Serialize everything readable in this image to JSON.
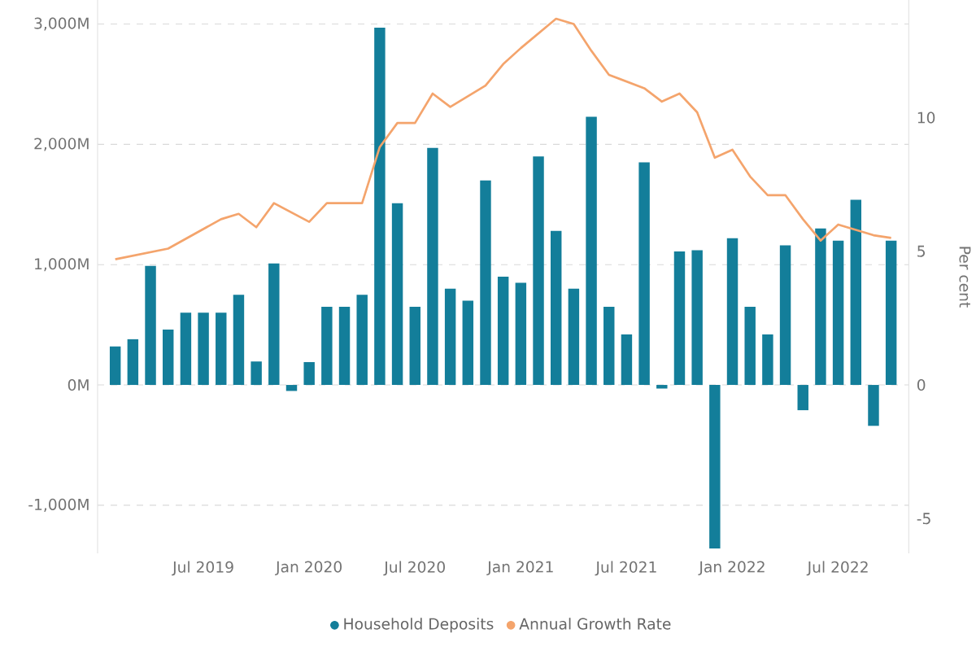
{
  "chart_data": {
    "type": "bar",
    "ylabel": null,
    "y2label": "Per cent",
    "x": [
      "2019-02",
      "2019-03",
      "2019-04",
      "2019-05",
      "2019-06",
      "2019-07",
      "2019-08",
      "2019-09",
      "2019-10",
      "2019-11",
      "2019-12",
      "2020-01",
      "2020-02",
      "2020-03",
      "2020-04",
      "2020-05",
      "2020-06",
      "2020-07",
      "2020-08",
      "2020-09",
      "2020-10",
      "2020-11",
      "2020-12",
      "2021-01",
      "2021-02",
      "2021-03",
      "2021-04",
      "2021-05",
      "2021-06",
      "2021-07",
      "2021-08",
      "2021-09",
      "2021-10",
      "2021-11",
      "2021-12",
      "2022-01",
      "2022-02",
      "2022-03",
      "2022-04",
      "2022-05",
      "2022-06",
      "2022-07",
      "2022-08",
      "2022-09",
      "2022-10"
    ],
    "series": [
      {
        "name": "Household Deposits",
        "color": "#137e9a",
        "values": [
          320,
          380,
          990,
          460,
          600,
          600,
          600,
          750,
          195,
          1010,
          -50,
          190,
          650,
          650,
          750,
          2970,
          1510,
          650,
          1970,
          800,
          700,
          1700,
          900,
          850,
          1900,
          1280,
          800,
          2230,
          650,
          420,
          1850,
          -30,
          1110,
          1120,
          -1360,
          1220,
          650,
          420,
          1160,
          -210,
          1300,
          1200,
          1540,
          -340,
          1200
        ]
      },
      {
        "name": "Annual Growth Rate",
        "type": "line",
        "axis": "y2",
        "color": "#f4a46c",
        "x": [
          "2019-02",
          "2019-05",
          "2019-08",
          "2019-09",
          "2019-10",
          "2019-11",
          "2020-01",
          "2020-02",
          "2020-04",
          "2020-05",
          "2020-06",
          "2020-07",
          "2020-08",
          "2020-09",
          "2020-11",
          "2020-12",
          "2021-01",
          "2021-03",
          "2021-04",
          "2021-05",
          "2021-06",
          "2021-08",
          "2021-09",
          "2021-10",
          "2021-11",
          "2021-12",
          "2022-01",
          "2022-02",
          "2022-03",
          "2022-04",
          "2022-05",
          "2022-06",
          "2022-07",
          "2022-09",
          "2022-10"
        ],
        "values": [
          4.7,
          5.1,
          6.2,
          6.4,
          5.9,
          6.8,
          6.1,
          6.8,
          6.8,
          8.9,
          9.8,
          9.8,
          10.9,
          10.4,
          11.2,
          12.0,
          12.6,
          13.7,
          13.5,
          12.5,
          11.6,
          11.1,
          10.6,
          10.9,
          10.2,
          8.5,
          8.8,
          7.8,
          7.1,
          7.1,
          6.2,
          5.4,
          6.0,
          5.6,
          5.5
        ]
      }
    ],
    "xlim": [
      "2019-01",
      "2022-11"
    ],
    "xticks": [
      {
        "value": "2019-07",
        "label": "Jul 2019"
      },
      {
        "value": "2020-01",
        "label": "Jan 2020"
      },
      {
        "value": "2020-07",
        "label": "Jul 2020"
      },
      {
        "value": "2021-01",
        "label": "Jan 2021"
      },
      {
        "value": "2021-07",
        "label": "Jul 2021"
      },
      {
        "value": "2022-01",
        "label": "Jan 2022"
      },
      {
        "value": "2022-07",
        "label": "Jul 2022"
      }
    ],
    "ylim": [
      -1400,
      3200
    ],
    "yticks": [
      {
        "value": -1000,
        "label": "-1,000M"
      },
      {
        "value": 0,
        "label": "0M"
      },
      {
        "value": 1000,
        "label": "1,000M"
      },
      {
        "value": 2000,
        "label": "2,000M"
      },
      {
        "value": 3000,
        "label": "3,000M"
      }
    ],
    "y2lim": [
      -6.3,
      14.4
    ],
    "y2ticks": [
      -5,
      0,
      5,
      10
    ],
    "grid": "y",
    "legend": "bottom",
    "marker": "none",
    "line_style": "solid"
  }
}
